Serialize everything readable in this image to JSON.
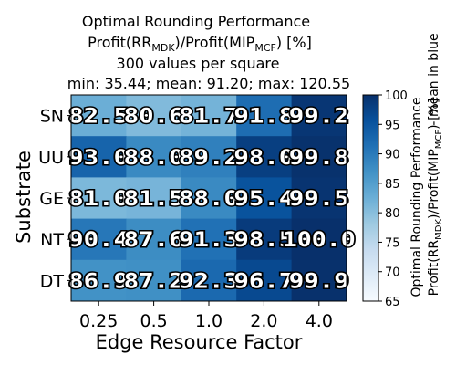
{
  "chart_data": {
    "type": "heatmap",
    "title_line1": "Optimal Rounding Performance",
    "title_line2_parts": [
      {
        "text": "Profit(RR",
        "sub": false
      },
      {
        "text": "MDK",
        "sub": true
      },
      {
        "text": ")/Profit(MIP",
        "sub": false
      },
      {
        "text": "MCF",
        "sub": true
      },
      {
        "text": ") [%]",
        "sub": false
      }
    ],
    "title_line3": "300 values per square",
    "title_line4": "min: 35.44; mean: 91.20; max: 120.55",
    "xlabel": "Edge Resource Factor",
    "ylabel": "Substrate",
    "x_categories": [
      "0.25",
      "0.5",
      "1.0",
      "2.0",
      "4.0"
    ],
    "y_categories": [
      "SN",
      "UU",
      "GE",
      "NT",
      "DT"
    ],
    "values": [
      [
        82.5,
        80.6,
        81.7,
        91.8,
        99.2
      ],
      [
        93.0,
        88.0,
        89.2,
        98.0,
        99.8
      ],
      [
        81.0,
        81.5,
        88.0,
        95.4,
        99.5
      ],
      [
        90.4,
        87.6,
        91.3,
        98.5,
        100.0
      ],
      [
        86.9,
        87.2,
        92.3,
        96.7,
        99.9
      ]
    ],
    "cell_labels": [
      [
        "82.5",
        "80.6",
        "81.7",
        "91.8",
        "99.2"
      ],
      [
        "93.0",
        "88.0",
        "89.2",
        "98.0",
        "99.8"
      ],
      [
        "81.0",
        "81.5",
        "88.0",
        "95.4",
        "99.5"
      ],
      [
        "90.4",
        "87.6",
        "91.3",
        "98.5",
        "100.0"
      ],
      [
        "86.9",
        "87.2",
        "92.3",
        "96.7",
        "99.9"
      ]
    ],
    "colorbar": {
      "colormap": "Blues",
      "min": 65,
      "max": 100,
      "ticks": [
        65,
        70,
        75,
        80,
        85,
        90,
        95,
        100
      ],
      "label_line1": "Optimal Rounding Performance",
      "label_line2_parts": [
        {
          "text": "Profit(RR",
          "sub": false
        },
        {
          "text": "MDK",
          "sub": true
        },
        {
          "text": ")/Profit(MIP",
          "sub": false
        },
        {
          "text": "MCF",
          "sub": true
        },
        {
          "text": ") [%]",
          "sub": false
        }
      ],
      "side_note": "- mean in blue"
    }
  }
}
